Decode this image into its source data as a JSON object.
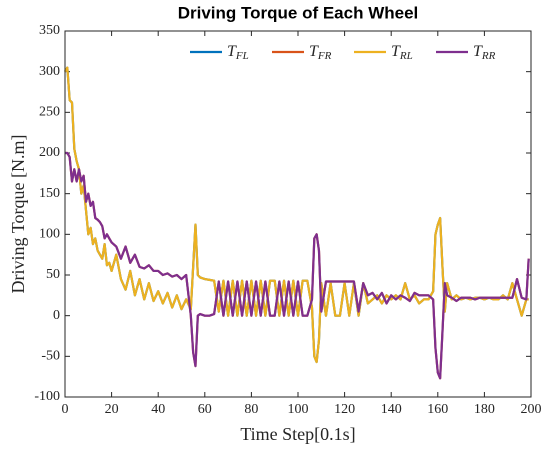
{
  "chart_data": {
    "type": "line",
    "title": "Driving Torque of Each Wheel",
    "xlabel": "Time Step[0.1s]",
    "ylabel": "Driving Torque [N.m]",
    "xlim": [
      0,
      200
    ],
    "ylim": [
      -100,
      350
    ],
    "xticks": [
      0,
      20,
      40,
      60,
      80,
      100,
      120,
      140,
      160,
      180,
      200
    ],
    "yticks": [
      -100,
      -50,
      0,
      50,
      100,
      150,
      200,
      250,
      300,
      350
    ],
    "grid": false,
    "legend": "upper right",
    "x": [
      0,
      1,
      2,
      3,
      4,
      5,
      6,
      7,
      8,
      9,
      10,
      11,
      12,
      13,
      14,
      15,
      16,
      17,
      18,
      19,
      20,
      22,
      24,
      26,
      28,
      30,
      32,
      34,
      36,
      38,
      40,
      42,
      44,
      46,
      48,
      50,
      52,
      54,
      55,
      56,
      57,
      58,
      60,
      62,
      64,
      66,
      68,
      70,
      72,
      74,
      76,
      78,
      80,
      82,
      84,
      86,
      88,
      90,
      92,
      94,
      96,
      98,
      100,
      102,
      104,
      106,
      107,
      108,
      109,
      110,
      112,
      114,
      116,
      118,
      120,
      122,
      124,
      126,
      128,
      130,
      132,
      134,
      136,
      138,
      140,
      142,
      144,
      146,
      148,
      150,
      152,
      154,
      156,
      158,
      159,
      160,
      161,
      162,
      163,
      164,
      166,
      168,
      170,
      172,
      174,
      176,
      178,
      180,
      182,
      184,
      186,
      188,
      190,
      192,
      194,
      196,
      198,
      199
    ],
    "series": [
      {
        "name": "T_FL",
        "color": "#0072bd",
        "values": [
          300,
          305,
          265,
          262,
          205,
          190,
          180,
          150,
          160,
          130,
          100,
          108,
          88,
          95,
          80,
          75,
          70,
          88,
          62,
          65,
          55,
          75,
          45,
          32,
          55,
          25,
          45,
          20,
          40,
          18,
          30,
          15,
          28,
          10,
          25,
          8,
          20,
          8,
          60,
          112,
          50,
          47,
          45,
          44,
          43,
          5,
          43,
          0,
          43,
          0,
          43,
          0,
          43,
          0,
          43,
          0,
          43,
          43,
          0,
          43,
          0,
          43,
          0,
          43,
          43,
          10,
          -50,
          -57,
          -30,
          40,
          0,
          40,
          0,
          0,
          40,
          0,
          40,
          0,
          40,
          15,
          20,
          25,
          15,
          25,
          20,
          25,
          20,
          40,
          20,
          25,
          15,
          20,
          20,
          30,
          100,
          112,
          120,
          60,
          5,
          40,
          20,
          25,
          20,
          22,
          20,
          22,
          22,
          20,
          22,
          20,
          20,
          25,
          20,
          40,
          20,
          0,
          20,
          20
        ]
      },
      {
        "name": "T_FR",
        "color": "#d95319",
        "values": [
          200,
          200,
          195,
          165,
          180,
          165,
          180,
          165,
          172,
          140,
          150,
          135,
          140,
          120,
          118,
          115,
          110,
          95,
          100,
          95,
          90,
          85,
          70,
          85,
          65,
          75,
          60,
          58,
          62,
          55,
          55,
          50,
          52,
          48,
          50,
          45,
          50,
          0,
          -45,
          -62,
          0,
          2,
          0,
          0,
          2,
          42,
          0,
          42,
          0,
          42,
          0,
          42,
          0,
          42,
          0,
          42,
          0,
          0,
          42,
          0,
          42,
          0,
          42,
          0,
          0,
          20,
          95,
          100,
          80,
          5,
          42,
          42,
          42,
          42,
          42,
          42,
          42,
          5,
          40,
          25,
          28,
          20,
          28,
          15,
          25,
          20,
          25,
          22,
          18,
          28,
          25,
          25,
          25,
          20,
          -40,
          -70,
          -77,
          -20,
          40,
          25,
          22,
          18,
          22,
          22,
          22,
          20,
          22,
          22,
          22,
          22,
          22,
          22,
          22,
          22,
          45,
          22,
          20,
          70
        ]
      },
      {
        "name": "T_RL",
        "color": "#edb120",
        "values": [
          300,
          305,
          265,
          262,
          205,
          190,
          180,
          150,
          160,
          130,
          100,
          108,
          88,
          95,
          80,
          75,
          70,
          88,
          62,
          65,
          55,
          75,
          45,
          32,
          55,
          25,
          45,
          20,
          40,
          18,
          30,
          15,
          28,
          10,
          25,
          8,
          20,
          8,
          60,
          112,
          50,
          47,
          45,
          44,
          43,
          5,
          43,
          0,
          43,
          0,
          43,
          0,
          43,
          0,
          43,
          0,
          43,
          43,
          0,
          43,
          0,
          43,
          0,
          43,
          43,
          10,
          -50,
          -57,
          -30,
          40,
          0,
          40,
          0,
          0,
          40,
          0,
          40,
          0,
          40,
          15,
          20,
          25,
          15,
          25,
          20,
          25,
          20,
          40,
          20,
          25,
          15,
          20,
          20,
          30,
          100,
          112,
          120,
          60,
          5,
          40,
          20,
          25,
          20,
          22,
          20,
          22,
          22,
          20,
          22,
          20,
          20,
          25,
          20,
          40,
          20,
          0,
          20,
          20
        ]
      },
      {
        "name": "T_RR",
        "color": "#7e2f8e",
        "values": [
          200,
          200,
          195,
          165,
          180,
          165,
          180,
          165,
          172,
          140,
          150,
          135,
          140,
          120,
          118,
          115,
          110,
          95,
          100,
          95,
          90,
          85,
          70,
          85,
          65,
          75,
          60,
          58,
          62,
          55,
          55,
          50,
          52,
          48,
          50,
          45,
          50,
          0,
          -45,
          -62,
          0,
          2,
          0,
          0,
          2,
          42,
          0,
          42,
          0,
          42,
          0,
          42,
          0,
          42,
          0,
          42,
          0,
          0,
          42,
          0,
          42,
          0,
          42,
          0,
          0,
          20,
          95,
          100,
          80,
          5,
          42,
          42,
          42,
          42,
          42,
          42,
          42,
          5,
          40,
          25,
          28,
          20,
          28,
          15,
          25,
          20,
          25,
          22,
          18,
          28,
          25,
          25,
          25,
          20,
          -40,
          -70,
          -77,
          -20,
          40,
          25,
          22,
          18,
          22,
          22,
          22,
          20,
          22,
          22,
          22,
          22,
          22,
          22,
          22,
          22,
          45,
          22,
          20,
          70
        ]
      }
    ]
  }
}
